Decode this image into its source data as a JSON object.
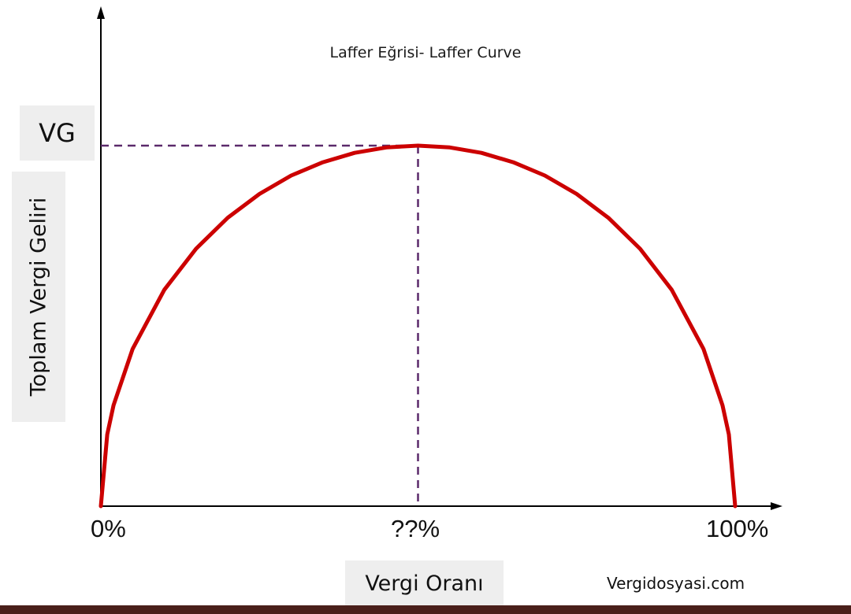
{
  "chart_data": {
    "type": "line",
    "title": "Laffer Eğrisi- Laffer Curve",
    "xlabel": "Vergi Oranı",
    "ylabel": "Toplam Vergi Geliri",
    "xlim": [
      0,
      100
    ],
    "ylim": [
      0,
      1
    ],
    "x_ticks": [
      "0%",
      "??%",
      "100%"
    ],
    "peak": {
      "x_label": "??%",
      "y_label": "VG",
      "x": 50,
      "y": 1
    },
    "series": [
      {
        "x": [
          0,
          1,
          2,
          5,
          10,
          15,
          20,
          25,
          30,
          35,
          40,
          45,
          50,
          55,
          60,
          65,
          70,
          75,
          80,
          85,
          90,
          95,
          98,
          99,
          100
        ],
        "y": [
          0,
          0.199,
          0.28,
          0.436,
          0.6,
          0.714,
          0.8,
          0.866,
          0.917,
          0.954,
          0.98,
          0.995,
          1,
          0.995,
          0.98,
          0.954,
          0.917,
          0.866,
          0.8,
          0.714,
          0.6,
          0.436,
          0.28,
          0.199,
          0
        ]
      }
    ],
    "grid": false,
    "legend": "none"
  },
  "watermark": "Vergidosyasi.com",
  "colors": {
    "curve": "#cc0000",
    "guide": "#5b2a6b",
    "axis": "#000000",
    "label_box": "#eeeeee",
    "bottom_bar": "#4a1f1a"
  }
}
